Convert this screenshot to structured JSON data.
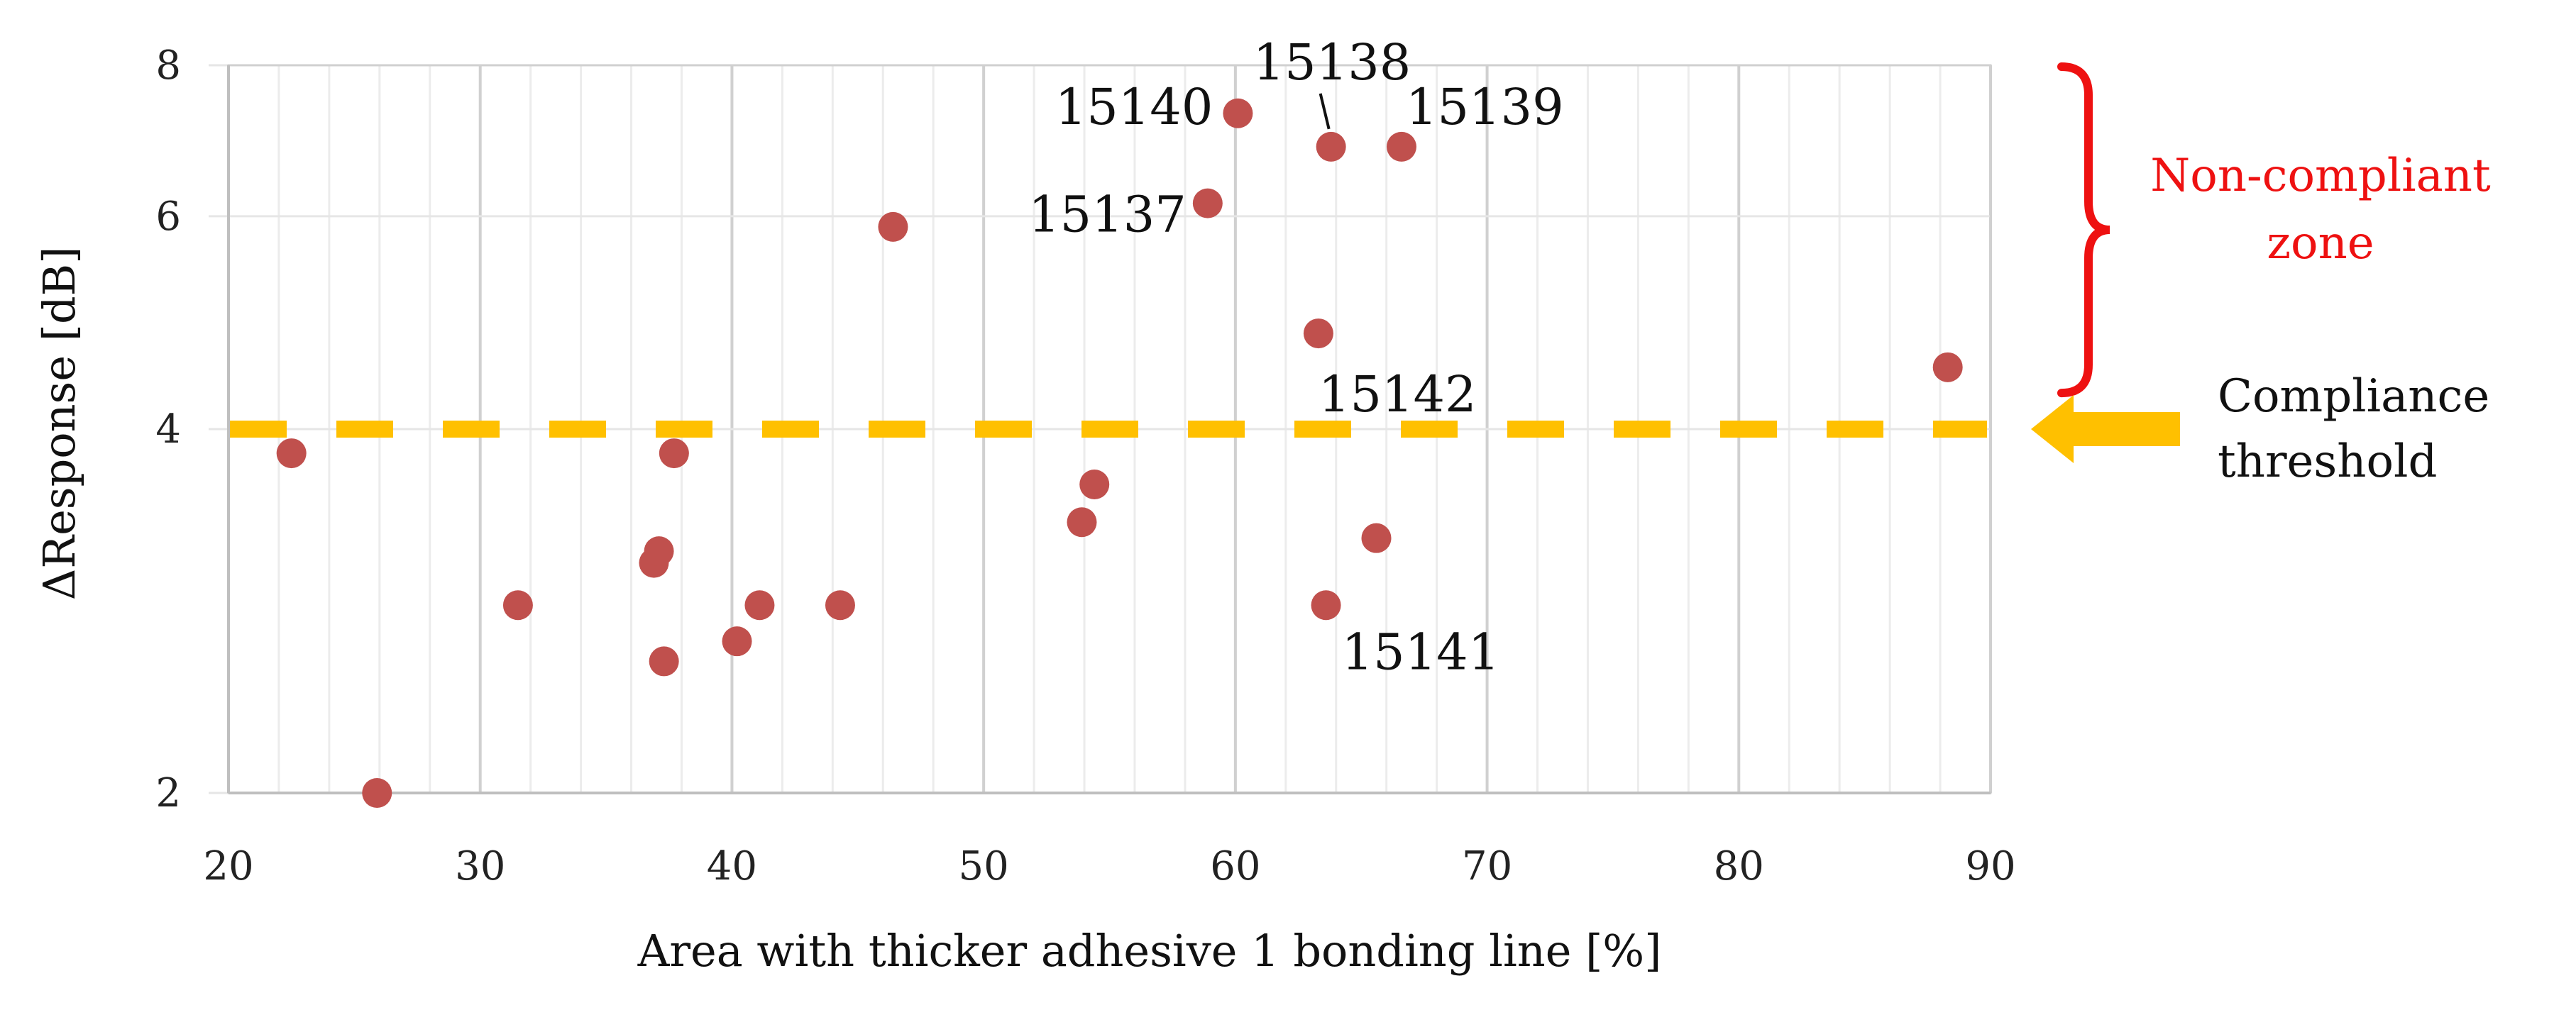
{
  "chart_data": {
    "type": "scatter",
    "title": "",
    "xlabel": "Area with thicker adhesive 1 bonding line [%]",
    "ylabel": "ΔResponse [dB]",
    "xlim": [
      20,
      90
    ],
    "ylim": [
      2,
      8
    ],
    "y_scale": "log",
    "x_ticks": [
      20,
      30,
      40,
      50,
      60,
      70,
      80,
      90
    ],
    "y_ticks": [
      2,
      4,
      6,
      8
    ],
    "x_minor_step": 2,
    "grid": true,
    "threshold": {
      "value": 4.0,
      "label": "Compliance threshold",
      "color": "#FFC000"
    },
    "zone": {
      "label": "Non-compliant zone",
      "from": 4.45,
      "to": 8,
      "color": "#EE1111"
    },
    "marker_color": "#C0504D",
    "points": [
      {
        "x": 22.5,
        "y": 3.82,
        "label": ""
      },
      {
        "x": 25.9,
        "y": 2.0,
        "label": ""
      },
      {
        "x": 31.5,
        "y": 2.86,
        "label": ""
      },
      {
        "x": 36.9,
        "y": 3.1,
        "label": ""
      },
      {
        "x": 37.1,
        "y": 3.17,
        "label": ""
      },
      {
        "x": 37.3,
        "y": 2.57,
        "label": ""
      },
      {
        "x": 37.7,
        "y": 3.82,
        "label": ""
      },
      {
        "x": 40.2,
        "y": 2.67,
        "label": ""
      },
      {
        "x": 41.1,
        "y": 2.86,
        "label": ""
      },
      {
        "x": 44.3,
        "y": 2.86,
        "label": ""
      },
      {
        "x": 46.4,
        "y": 5.88,
        "label": ""
      },
      {
        "x": 53.9,
        "y": 3.35,
        "label": ""
      },
      {
        "x": 54.4,
        "y": 3.6,
        "label": ""
      },
      {
        "x": 58.9,
        "y": 6.15,
        "label": "15137"
      },
      {
        "x": 60.1,
        "y": 7.3,
        "label": "15140"
      },
      {
        "x": 63.3,
        "y": 4.8,
        "label": "15142"
      },
      {
        "x": 63.6,
        "y": 2.86,
        "label": "15141"
      },
      {
        "x": 63.8,
        "y": 6.85,
        "label": "15138"
      },
      {
        "x": 65.6,
        "y": 3.25,
        "label": ""
      },
      {
        "x": 66.6,
        "y": 6.85,
        "label": "15139"
      },
      {
        "x": 88.3,
        "y": 4.5,
        "label": ""
      }
    ]
  }
}
